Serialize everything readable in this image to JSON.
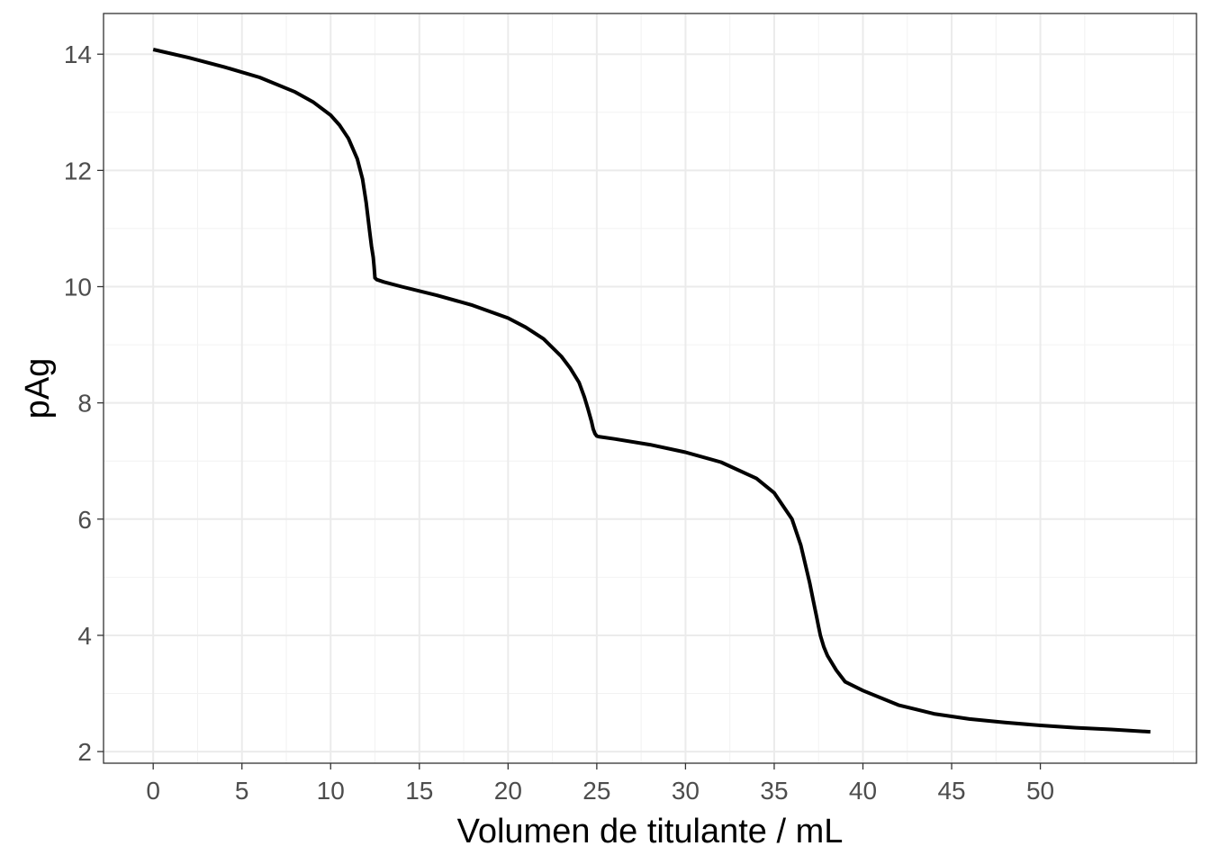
{
  "chart_data": {
    "type": "line",
    "title": "",
    "xlabel": "Volumen de titulante / mL",
    "ylabel": "pAg",
    "xlim": [
      -2.8,
      58.8
    ],
    "ylim": [
      1.8,
      14.7
    ],
    "x_ticks": [
      0,
      5,
      10,
      15,
      20,
      25,
      30,
      35,
      40,
      45,
      50
    ],
    "x_tick_labels": [
      "0",
      "5",
      "10",
      "15",
      "20",
      "25",
      "30",
      "35",
      "40",
      "45",
      "50"
    ],
    "x_minor_ticks": [
      2.5,
      7.5,
      12.5,
      17.5,
      22.5,
      27.5,
      32.5,
      37.5,
      42.5,
      47.5,
      52.5,
      57.5
    ],
    "y_ticks": [
      2,
      4,
      6,
      8,
      10,
      12,
      14
    ],
    "y_tick_labels": [
      "2",
      "4",
      "6",
      "8",
      "10",
      "12",
      "14"
    ],
    "y_minor_ticks": [
      3,
      5,
      7,
      9,
      11,
      13
    ],
    "grid": true,
    "legend": "none",
    "line_color": "#000000",
    "series": [
      {
        "x": [
          0,
          2,
          4,
          6,
          8,
          9,
          10,
          10.5,
          11,
          11.5,
          11.8,
          12,
          12.2,
          12.3,
          12.4,
          12.45,
          12.5,
          12.6,
          13,
          14,
          16,
          18,
          20,
          21,
          22,
          23,
          23.5,
          24,
          24.3,
          24.5,
          24.7,
          24.8,
          24.9,
          25,
          25.1,
          26,
          28,
          30,
          32,
          34,
          35,
          36,
          36.5,
          37,
          37.2,
          37.4,
          37.5,
          37.6,
          37.8,
          38,
          38.5,
          39,
          40,
          42,
          44,
          46,
          48,
          50,
          52,
          54,
          56.2
        ],
        "y": [
          14.08,
          13.94,
          13.78,
          13.6,
          13.35,
          13.18,
          12.95,
          12.78,
          12.55,
          12.2,
          11.85,
          11.45,
          10.95,
          10.7,
          10.5,
          10.35,
          10.15,
          10.12,
          10.08,
          10.0,
          9.85,
          9.68,
          9.46,
          9.3,
          9.1,
          8.8,
          8.6,
          8.35,
          8.1,
          7.9,
          7.68,
          7.55,
          7.47,
          7.43,
          7.42,
          7.38,
          7.28,
          7.15,
          6.98,
          6.7,
          6.45,
          6.0,
          5.55,
          4.9,
          4.6,
          4.3,
          4.15,
          4.0,
          3.8,
          3.65,
          3.4,
          3.2,
          3.05,
          2.8,
          2.65,
          2.56,
          2.5,
          2.45,
          2.41,
          2.38,
          2.34
        ]
      }
    ]
  }
}
